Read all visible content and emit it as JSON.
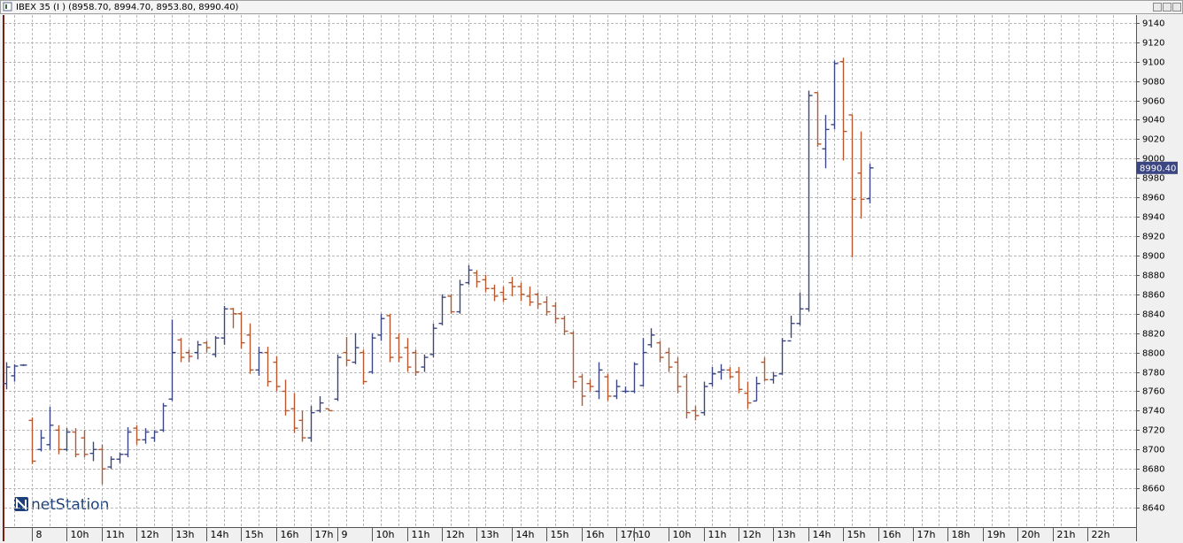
{
  "chart_data": {
    "type": "ohlc",
    "title": "IBEX 35 (I ) (8958.70, 8994.70, 8953.80, 8990.40)",
    "watermark": "netStation",
    "last_label": "8990.40",
    "up_color": "#3b4683",
    "down_color": "#b9582e",
    "grid": true,
    "ylim": [
      8620,
      9148
    ],
    "yticks": [
      8640,
      8660,
      8680,
      8700,
      8720,
      8740,
      8760,
      8780,
      8800,
      8820,
      8840,
      8860,
      8880,
      8900,
      8920,
      8940,
      8960,
      8980,
      9000,
      9020,
      9040,
      9060,
      9080,
      9100,
      9120,
      9140
    ],
    "categories": [
      null,
      null,
      null,
      "8",
      null,
      null,
      null,
      "10h",
      null,
      null,
      null,
      "11h",
      null,
      null,
      null,
      "12h",
      null,
      null,
      null,
      "13h",
      null,
      null,
      null,
      "14h",
      null,
      null,
      null,
      "15h",
      null,
      null,
      null,
      "16h",
      null,
      null,
      null,
      "17h",
      null,
      null,
      "9",
      null,
      null,
      null,
      "10h",
      null,
      null,
      null,
      "11h",
      null,
      null,
      null,
      "12h",
      null,
      null,
      null,
      "13h",
      null,
      null,
      null,
      "14h",
      null,
      null,
      null,
      "15h",
      null,
      null,
      null,
      "16h",
      null,
      null,
      null,
      "17h",
      null,
      "10",
      null,
      null,
      null,
      "10h",
      null,
      null,
      null,
      "11h",
      null,
      null,
      null,
      "12h",
      null,
      null,
      null,
      "13h",
      null,
      null,
      null,
      "14h",
      null,
      null,
      null,
      "15h",
      null,
      null,
      null,
      "16h",
      null,
      null,
      null,
      "17h",
      null,
      null,
      null,
      "18h",
      null,
      null,
      null,
      "19h",
      null,
      null,
      null,
      "20h",
      null,
      null,
      null,
      "21h",
      null,
      null,
      null,
      "22h",
      null,
      null,
      null,
      null
    ],
    "open": [
      8768,
      8776,
      8787,
      8730,
      8700,
      8705,
      8720,
      8700,
      8718,
      8712,
      8696,
      8700,
      8682,
      8690,
      8695,
      8722,
      8710,
      8712,
      8720,
      8752,
      8813,
      8800,
      8800,
      8810,
      8798,
      8815,
      8845,
      8840,
      8818,
      8782,
      8800,
      8790,
      8760,
      8742,
      8730,
      8712,
      8740,
      8742,
      8752,
      8800,
      8790,
      8800,
      8780,
      8818,
      8838,
      8815,
      8805,
      8800,
      8785,
      8798,
      8830,
      8858,
      8842,
      8872,
      8882,
      8875,
      8866,
      8862,
      8872,
      8868,
      8858,
      8860,
      8852,
      8848,
      8835,
      8820,
      8775,
      8768,
      8760,
      8775,
      8755,
      8760,
      8760,
      8766,
      8808,
      8810,
      8800,
      8790,
      8775,
      8740,
      8738,
      8768,
      8780,
      8782,
      8780,
      8758,
      8750,
      8790,
      8772,
      8778,
      8812,
      8830,
      8845,
      9068,
      9010,
      9035,
      9100,
      9045,
      8985,
      8958.7,
      null,
      null,
      null,
      null,
      null,
      null,
      null,
      null,
      null,
      null,
      null,
      null,
      null,
      null,
      null,
      null,
      null,
      null,
      null,
      null,
      null,
      null,
      null,
      null,
      null,
      null,
      null,
      null,
      null
    ],
    "high": [
      8790,
      8788,
      8788,
      8733,
      8720,
      8744,
      8725,
      8722,
      8722,
      8720,
      8708,
      8705,
      8693,
      8697,
      8723,
      8725,
      8722,
      8720,
      8748,
      8834,
      8815,
      8803,
      8812,
      8812,
      8817,
      8848,
      8846,
      8842,
      8830,
      8806,
      8806,
      8796,
      8772,
      8758,
      8740,
      8745,
      8755,
      8742,
      8798,
      8816,
      8820,
      8803,
      8820,
      8840,
      8840,
      8820,
      8815,
      8803,
      8798,
      8830,
      8860,
      8860,
      8875,
      8890,
      8885,
      8880,
      8870,
      8868,
      8878,
      8872,
      8868,
      8862,
      8858,
      8852,
      8838,
      8822,
      8778,
      8772,
      8790,
      8778,
      8772,
      8765,
      8790,
      8815,
      8825,
      8812,
      8805,
      8795,
      8778,
      8745,
      8770,
      8785,
      8788,
      8785,
      8785,
      8770,
      8775,
      8795,
      8780,
      8815,
      8838,
      8862,
      9070,
      9068,
      9045,
      9101,
      9104,
      9045,
      9028,
      8994.7,
      null,
      null,
      null,
      null,
      null,
      null,
      null,
      null,
      null,
      null,
      null,
      null,
      null,
      null,
      null,
      null,
      null,
      null,
      null,
      null,
      null,
      null,
      null,
      null,
      null,
      null,
      null,
      null,
      null
    ],
    "low": [
      8762,
      8770,
      8786,
      8685,
      8698,
      8700,
      8695,
      8698,
      8692,
      8692,
      8688,
      8664,
      8680,
      8686,
      8692,
      8705,
      8706,
      8708,
      8718,
      8750,
      8790,
      8790,
      8793,
      8800,
      8795,
      8808,
      8825,
      8804,
      8778,
      8776,
      8765,
      8760,
      8735,
      8717,
      8708,
      8708,
      8738,
      8740,
      8750,
      8786,
      8788,
      8767,
      8778,
      8812,
      8790,
      8790,
      8780,
      8776,
      8780,
      8795,
      8828,
      8840,
      8840,
      8870,
      8867,
      8862,
      8853,
      8852,
      8858,
      8853,
      8848,
      8845,
      8838,
      8830,
      8818,
      8763,
      8745,
      8760,
      8752,
      8750,
      8752,
      8758,
      8758,
      8765,
      8805,
      8790,
      8780,
      8758,
      8732,
      8730,
      8735,
      8765,
      8772,
      8773,
      8758,
      8742,
      8750,
      8770,
      8768,
      8777,
      8815,
      8828,
      8842,
      9012,
      8990,
      9030,
      8998,
      8898,
      8938,
      8953.8,
      null,
      null,
      null,
      null,
      null,
      null,
      null,
      null,
      null,
      null,
      null,
      null,
      null,
      null,
      null,
      null,
      null,
      null,
      null,
      null,
      null,
      null,
      null,
      null,
      null,
      null,
      null,
      null,
      null
    ],
    "close": [
      8785,
      8786,
      8787,
      8688,
      8712,
      8725,
      8700,
      8718,
      8695,
      8695,
      8700,
      8680,
      8690,
      8695,
      8718,
      8710,
      8718,
      8718,
      8745,
      8800,
      8795,
      8796,
      8808,
      8805,
      8815,
      8845,
      8840,
      8810,
      8782,
      8800,
      8770,
      8765,
      8740,
      8722,
      8712,
      8738,
      8748,
      8740,
      8795,
      8792,
      8805,
      8770,
      8815,
      8835,
      8795,
      8795,
      8785,
      8780,
      8795,
      8825,
      8857,
      8842,
      8870,
      8885,
      8873,
      8866,
      8858,
      8855,
      8868,
      8860,
      8852,
      8850,
      8842,
      8835,
      8822,
      8770,
      8755,
      8765,
      8782,
      8755,
      8765,
      8760,
      8788,
      8800,
      8818,
      8795,
      8785,
      8765,
      8738,
      8735,
      8765,
      8778,
      8782,
      8775,
      8762,
      8748,
      8768,
      8772,
      8776,
      8812,
      8830,
      8845,
      9065,
      9015,
      9030,
      9098,
      9028,
      8958,
      8958,
      8990.4,
      null,
      null,
      null,
      null,
      null,
      null,
      null,
      null,
      null,
      null,
      null,
      null,
      null,
      null,
      null,
      null,
      null,
      null,
      null,
      null,
      null,
      null,
      null,
      null,
      null,
      null,
      null,
      null,
      null
    ]
  }
}
